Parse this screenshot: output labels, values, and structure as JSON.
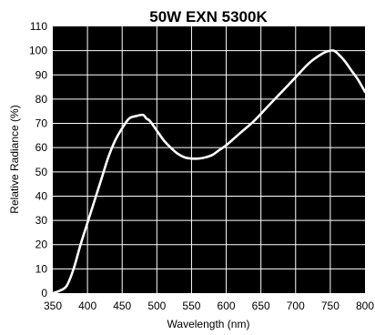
{
  "chart_data": {
    "type": "line",
    "title": "50W EXN 5300K",
    "xlabel": "Wavelength (nm)",
    "ylabel": "Relative Radiance (%)",
    "xlim": [
      350,
      800
    ],
    "ylim": [
      0,
      110
    ],
    "x_ticks": [
      "350",
      "400",
      "450",
      "500",
      "550",
      "600",
      "650",
      "700",
      "750",
      "800"
    ],
    "y_ticks": [
      "0",
      "10",
      "20",
      "30",
      "40",
      "50",
      "60",
      "70",
      "80",
      "90",
      "100",
      "110"
    ],
    "grid": true,
    "background": "#000000",
    "line_color": "#ffffff",
    "series": [
      {
        "x": [
          350,
          360,
          370,
          380,
          390,
          400,
          410,
          420,
          430,
          440,
          450,
          460,
          470,
          480,
          485,
          490,
          500,
          510,
          520,
          530,
          540,
          550,
          560,
          570,
          580,
          590,
          600,
          620,
          640,
          660,
          680,
          700,
          720,
          740,
          750,
          755,
          760,
          770,
          780,
          790,
          800
        ],
        "y": [
          0,
          1,
          3,
          10,
          20,
          29,
          38,
          47,
          56,
          63,
          68,
          72,
          73,
          73.5,
          72,
          71,
          67,
          63,
          60,
          57.5,
          56,
          55.5,
          55.5,
          56,
          57,
          59,
          61,
          66,
          71,
          77,
          83,
          89,
          95,
          99,
          100,
          100,
          99,
          96,
          92,
          88,
          83
        ]
      }
    ]
  }
}
